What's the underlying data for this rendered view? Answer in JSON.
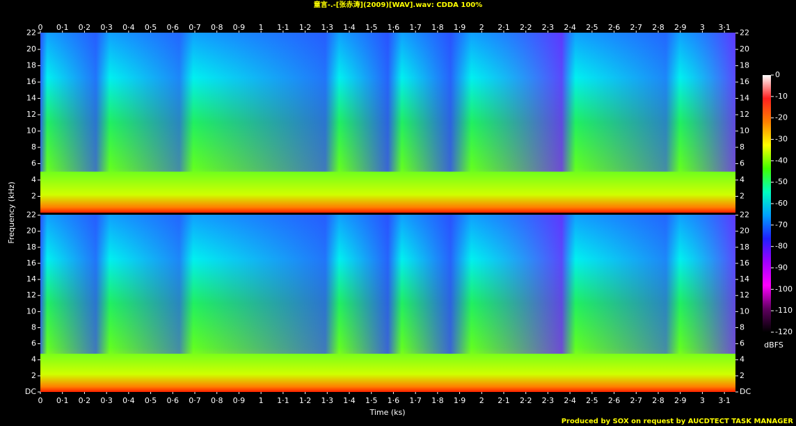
{
  "chart_data": {
    "type": "spectrogram",
    "title": "童言-.-[张赤涛](2009)[WAV].wav: CDDA 100%",
    "x_label": "Time (ks)",
    "y_label": "Frequency (kHz)",
    "xlim": [
      0,
      3.15
    ],
    "xticks": [
      0,
      {
        "value": 0.1,
        "label": "0·1"
      },
      {
        "value": 0.2,
        "label": "0·2"
      },
      {
        "value": 0.3,
        "label": "0·3"
      },
      {
        "value": 0.4,
        "label": "0·4"
      },
      {
        "value": 0.5,
        "label": "0·5"
      },
      {
        "value": 0.6,
        "label": "0·6"
      },
      {
        "value": 0.7,
        "label": "0·7"
      },
      {
        "value": 0.8,
        "label": "0·8"
      },
      {
        "value": 0.9,
        "label": "0·9"
      },
      1,
      {
        "value": 1.1,
        "label": "1·1"
      },
      {
        "value": 1.2,
        "label": "1·2"
      },
      {
        "value": 1.3,
        "label": "1·3"
      },
      {
        "value": 1.4,
        "label": "1·4"
      },
      {
        "value": 1.5,
        "label": "1·5"
      },
      {
        "value": 1.6,
        "label": "1·6"
      },
      {
        "value": 1.7,
        "label": "1·7"
      },
      {
        "value": 1.8,
        "label": "1·8"
      },
      {
        "value": 1.9,
        "label": "1·9"
      },
      2,
      {
        "value": 2.1,
        "label": "2·1"
      },
      {
        "value": 2.2,
        "label": "2·2"
      },
      {
        "value": 2.3,
        "label": "2·3"
      },
      {
        "value": 2.4,
        "label": "2·4"
      },
      {
        "value": 2.5,
        "label": "2·5"
      },
      {
        "value": 2.6,
        "label": "2·6"
      },
      {
        "value": 2.7,
        "label": "2·7"
      },
      {
        "value": 2.8,
        "label": "2·8"
      },
      {
        "value": 2.9,
        "label": "2·9"
      },
      3,
      {
        "value": 3.1,
        "label": "3·1"
      }
    ],
    "channels": [
      {
        "ylim": [
          0,
          22.05
        ],
        "yticks": [
          2,
          4,
          6,
          8,
          10,
          12,
          14,
          16,
          18,
          20,
          22
        ]
      },
      {
        "ylim": [
          0,
          22.05
        ],
        "yticks": [
          {
            "value": 0,
            "label": "DC"
          },
          2,
          4,
          6,
          8,
          10,
          12,
          14,
          16,
          18,
          20,
          22
        ]
      }
    ],
    "colorbar": {
      "label": "dBFS",
      "lim": [
        -120,
        0
      ],
      "ticks": [
        0,
        -10,
        -20,
        -30,
        -40,
        -50,
        -60,
        -70,
        -80,
        -90,
        -100,
        -110,
        -120
      ],
      "colors": [
        "#ffffff",
        "#ff2020",
        "#ff8000",
        "#ffff00",
        "#40ff00",
        "#00ffc0",
        "#00a0ff",
        "#2020ff",
        "#a000ff",
        "#ff00ff",
        "#600060",
        "#000000"
      ]
    },
    "footer": "Produced by SOX on request by AUCDTECT TASK MANAGER"
  }
}
